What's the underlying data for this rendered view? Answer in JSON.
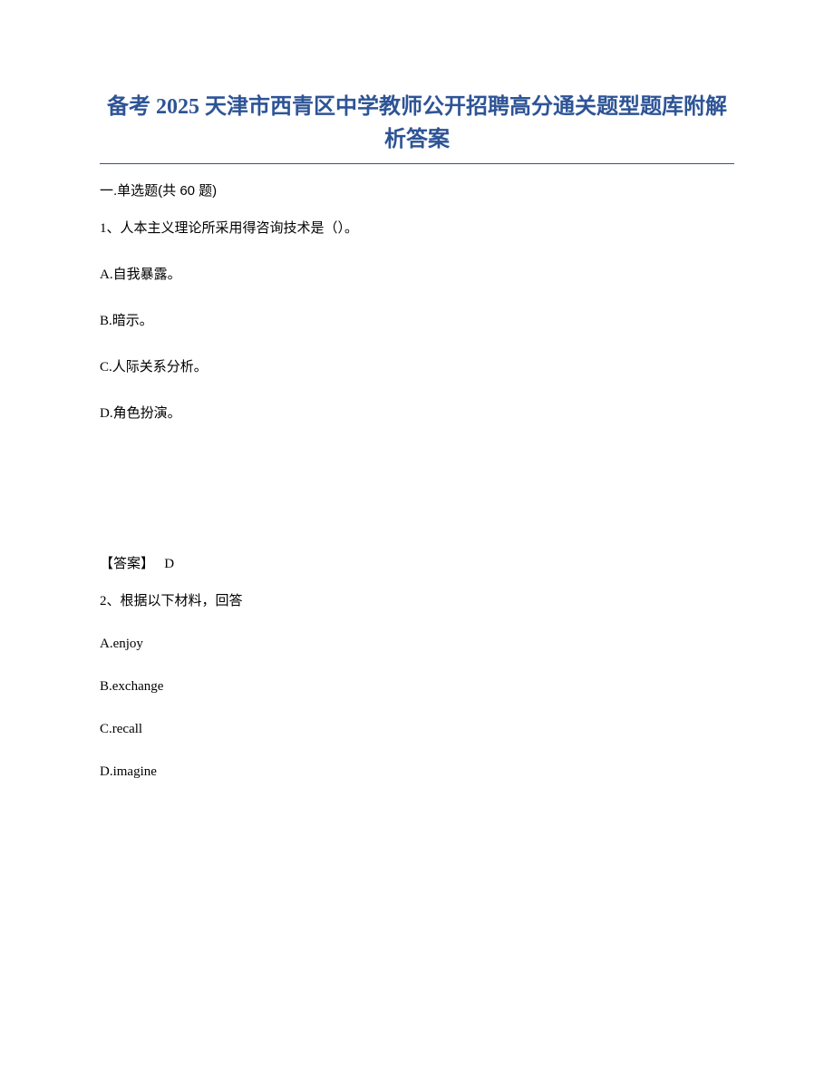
{
  "title": "备考 2025 天津市西青区中学教师公开招聘高分通关题型题库附解析答案",
  "section_header": "一.单选题(共 60 题)",
  "colors": {
    "title_color": "#2e5496",
    "border_color": "#2e5496",
    "text_color": "#000000",
    "background": "#ffffff"
  },
  "typography": {
    "title_fontsize": 24,
    "body_fontsize": 15,
    "title_font": "SimSun",
    "body_font": "SimSun"
  },
  "questions": [
    {
      "number": "1",
      "stem": "1、人本主义理论所采用得咨询技术是（）。",
      "options": {
        "A": "A.自我暴露。",
        "B": "B.暗示。",
        "C": "C.人际关系分析。",
        "D": "D.角色扮演。"
      },
      "answer_label": "【答案】",
      "answer_value": "D"
    },
    {
      "number": "2",
      "stem": "2、根据以下材料，回答",
      "options": {
        "A": "A.enjoy",
        "B": "B.exchange",
        "C": "C.recall",
        "D": "D.imagine"
      }
    }
  ]
}
